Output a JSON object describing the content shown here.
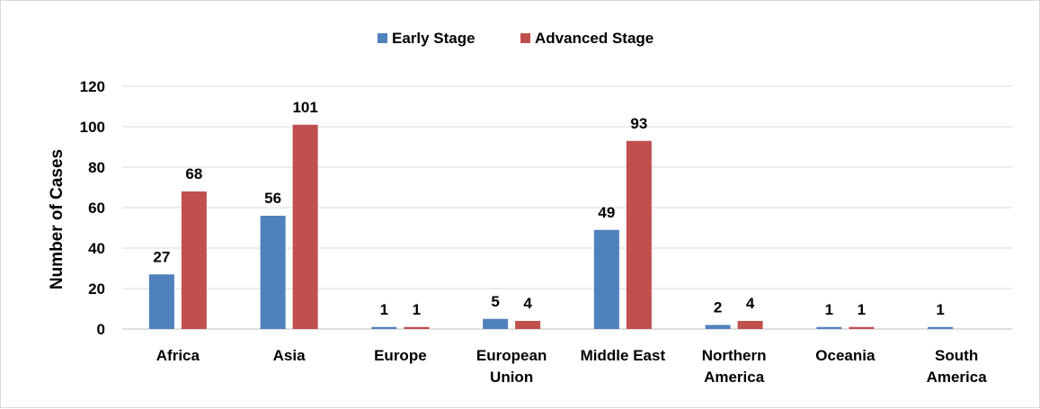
{
  "chart_data": {
    "type": "bar",
    "title": "",
    "xlabel": "",
    "ylabel": "Number of Cases",
    "ylim": [
      0,
      120
    ],
    "yticks": [
      0,
      20,
      40,
      60,
      80,
      100,
      120
    ],
    "grid": true,
    "legend_position": "top",
    "categories": [
      [
        "Africa"
      ],
      [
        "Asia"
      ],
      [
        "Europe"
      ],
      [
        "European",
        "Union"
      ],
      [
        "Middle East"
      ],
      [
        "Northern",
        "America"
      ],
      [
        "Oceania"
      ],
      [
        "South",
        "America"
      ]
    ],
    "series": [
      {
        "name": "Early Stage",
        "color": "#4f81bd",
        "values": [
          27,
          56,
          1,
          5,
          49,
          2,
          1,
          1
        ]
      },
      {
        "name": "Advanced Stage",
        "color": "#c0504d",
        "values": [
          68,
          101,
          1,
          4,
          93,
          4,
          1,
          null
        ]
      }
    ]
  }
}
